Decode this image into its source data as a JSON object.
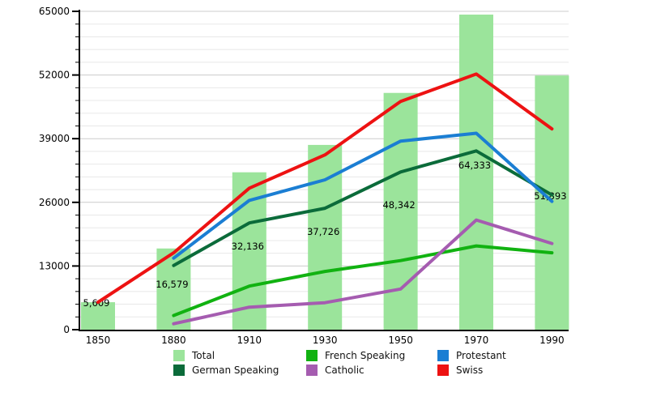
{
  "chart_data": {
    "type": "bar+line",
    "title": "",
    "xlabel": "",
    "ylabel": "",
    "categories": [
      "1850",
      "1880",
      "1910",
      "1930",
      "1950",
      "1970",
      "1990"
    ],
    "ylim": [
      0,
      65000
    ],
    "y_major_step": 13000,
    "y_minor_step": 2600,
    "grid": "on",
    "legend_position": "bottom",
    "y_tick_labels": [
      "0",
      "13000",
      "26000",
      "39000",
      "52000",
      "65000"
    ],
    "bars": {
      "name": "Total",
      "color": "#9be49b",
      "values": [
        5609,
        16579,
        32136,
        37726,
        48342,
        64333,
        51893
      ],
      "labels": [
        "5,609",
        "16,579",
        "32,136",
        "37,726",
        "48,342",
        "64,333",
        "51,893"
      ]
    },
    "series": [
      {
        "name": "German Speaking",
        "color": "#0b6b3a",
        "values": [
          null,
          13100,
          21800,
          24800,
          32200,
          36500,
          27500
        ]
      },
      {
        "name": "French Speaking",
        "color": "#11b211",
        "values": [
          null,
          2900,
          8900,
          11900,
          14100,
          17100,
          15700
        ]
      },
      {
        "name": "Protestant",
        "color": "#1b7ed3",
        "values": [
          null,
          14600,
          26400,
          30600,
          38500,
          40100,
          26200
        ]
      },
      {
        "name": "Catholic",
        "color": "#a55cb0",
        "values": [
          null,
          1200,
          4600,
          5500,
          8300,
          22400,
          17600
        ]
      },
      {
        "name": "Swiss",
        "color": "#ed1212",
        "values": [
          5600,
          15700,
          28900,
          35700,
          46600,
          52200,
          41000
        ]
      }
    ]
  },
  "legend": {
    "items": [
      {
        "label": "Total",
        "color": "#9be49b"
      },
      {
        "label": "French Speaking",
        "color": "#11b211"
      },
      {
        "label": "Protestant",
        "color": "#1b7ed3"
      },
      {
        "label": "German Speaking",
        "color": "#0b6b3a"
      },
      {
        "label": "Catholic",
        "color": "#a55cb0"
      },
      {
        "label": "Swiss",
        "color": "#ed1212"
      }
    ]
  },
  "colors": {
    "axis": "#000000",
    "grid_minor": "#e8e8e8",
    "grid_major": "#cccccc",
    "text": "#000000"
  }
}
